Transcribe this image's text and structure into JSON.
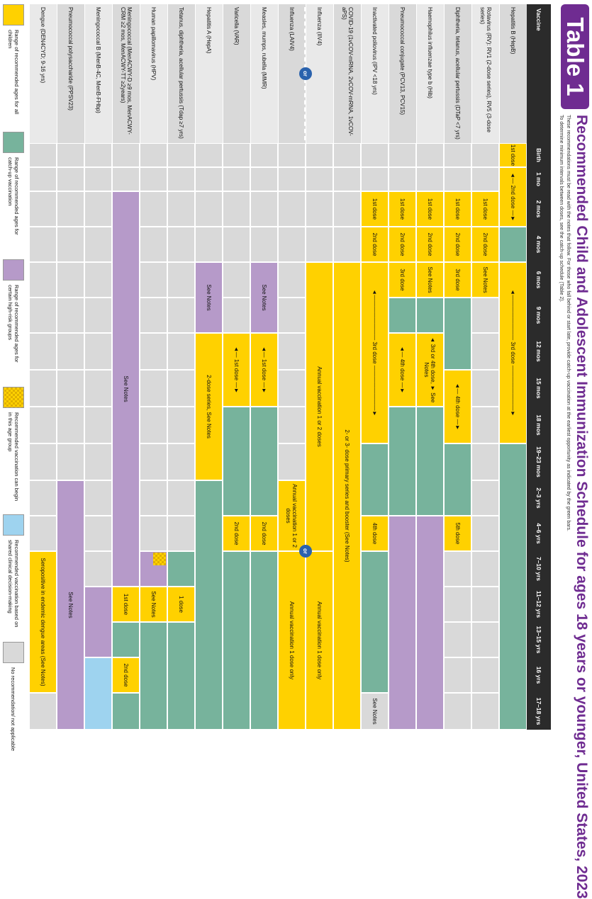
{
  "header": {
    "badge": "Table 1",
    "title": "Recommended Child and Adolescent Immunization Schedule for ages 18 years or younger, United States, 2023",
    "subtitle1": "These recommendations must be read with the notes that follow. For those who fall behind or start late, provide catch-up vaccination at the earliest opportunity as indicated by the green bars.",
    "subtitle2": "To determine minimum intervals between doses, see the catch-up schedule (Table 2)."
  },
  "table": {
    "vaccine_header": "Vaccine",
    "ages": [
      "Birth",
      "1 mo",
      "2 mos",
      "4 mos",
      "6 mos",
      "9 mos",
      "12 mos",
      "15 mos",
      "18 mos",
      "19–23 mos",
      "2–3 yrs",
      "4–6 yrs",
      "7–10 yrs",
      "11–12 yrs",
      "13–15 yrs",
      "16 yrs",
      "17–18 yrs"
    ],
    "vaccines": [
      "Hepatitis B (HepB)",
      "Rotavirus (RV): RV1 (2-dose series), RV5 (3-dose series)",
      "Diphtheria, tetanus, acellular pertussis (DTaP <7 yrs)",
      "Haemophilus influenzae type b (Hib)",
      "Pneumococcal conjugate (PCV13, PCV15)",
      "Inactivated poliovirus (IPV <18 yrs)",
      "COVID-19 (1vCOV-mRNA, 2vCOV-mRNA, 1vCOV-aPS)",
      "Influenza (IIV4)",
      "Influenza (LAIV4)",
      "Measles, mumps, rubella (MMR)",
      "Varicella (VAR)",
      "Hepatitis A (HepA)",
      "Tetanus, diphtheria, acellular pertussis (Tdap ≥7 yrs)",
      "Human papillomavirus (HPV)",
      "Meningococcal (MenACWY-D ≥9 mos, MenACWY-CRM ≥2 mos, MenACWY-TT ≥2years)",
      "Meningococcal B (MenB-4C, MenB-FHbp)",
      "Pneumococcal polysaccharide (PPSV23)",
      "Dengue (DEN4CYD; 9-16 yrs)"
    ],
    "or_label": "or",
    "segments": [
      {
        "row": 0,
        "start": 0,
        "end": 1,
        "color": "yellow",
        "text": "1st dose"
      },
      {
        "row": 0,
        "start": 1,
        "end": 3,
        "color": "yellow",
        "text": "◄— 2nd dose —►"
      },
      {
        "row": 0,
        "start": 3,
        "end": 4,
        "color": "green",
        "text": ""
      },
      {
        "row": 0,
        "start": 4,
        "end": 9,
        "color": "yellow",
        "text": "◄———————— 3rd dose ————————►"
      },
      {
        "row": 0,
        "start": 9,
        "end": 17,
        "color": "green",
        "text": ""
      },
      {
        "row": 1,
        "start": 2,
        "end": 3,
        "color": "yellow",
        "text": "1st dose"
      },
      {
        "row": 1,
        "start": 3,
        "end": 4,
        "color": "yellow",
        "text": "2nd dose"
      },
      {
        "row": 1,
        "start": 4,
        "end": 5,
        "color": "yellow",
        "text": "See Notes"
      },
      {
        "row": 2,
        "start": 2,
        "end": 3,
        "color": "yellow",
        "text": "1st dose"
      },
      {
        "row": 2,
        "start": 3,
        "end": 4,
        "color": "yellow",
        "text": "2nd dose"
      },
      {
        "row": 2,
        "start": 4,
        "end": 5,
        "color": "yellow",
        "text": "3rd dose"
      },
      {
        "row": 2,
        "start": 5,
        "end": 7,
        "color": "green",
        "text": ""
      },
      {
        "row": 2,
        "start": 7,
        "end": 9,
        "color": "yellow",
        "text": "◄— 4th dose —►"
      },
      {
        "row": 2,
        "start": 9,
        "end": 11,
        "color": "green",
        "text": ""
      },
      {
        "row": 2,
        "start": 11,
        "end": 12,
        "color": "yellow",
        "text": "5th dose"
      },
      {
        "row": 3,
        "start": 2,
        "end": 3,
        "color": "yellow",
        "text": "1st dose"
      },
      {
        "row": 3,
        "start": 3,
        "end": 4,
        "color": "yellow",
        "text": "2nd dose"
      },
      {
        "row": 3,
        "start": 4,
        "end": 5,
        "color": "yellow",
        "text": "See Notes"
      },
      {
        "row": 3,
        "start": 5,
        "end": 6,
        "color": "green",
        "text": ""
      },
      {
        "row": 3,
        "start": 6,
        "end": 8,
        "color": "yellow",
        "text": "◄ 3rd or 4th dose, ► See Notes"
      },
      {
        "row": 3,
        "start": 8,
        "end": 11,
        "color": "green",
        "text": ""
      },
      {
        "row": 3,
        "start": 11,
        "end": 17,
        "color": "purple",
        "text": ""
      },
      {
        "row": 4,
        "start": 2,
        "end": 3,
        "color": "yellow",
        "text": "1st dose"
      },
      {
        "row": 4,
        "start": 3,
        "end": 4,
        "color": "yellow",
        "text": "2nd dose"
      },
      {
        "row": 4,
        "start": 4,
        "end": 5,
        "color": "yellow",
        "text": "3rd dose"
      },
      {
        "row": 4,
        "start": 5,
        "end": 6,
        "color": "green",
        "text": ""
      },
      {
        "row": 4,
        "start": 6,
        "end": 8,
        "color": "yellow",
        "text": "◄— 4th dose —►"
      },
      {
        "row": 4,
        "start": 8,
        "end": 11,
        "color": "green",
        "text": ""
      },
      {
        "row": 4,
        "start": 11,
        "end": 17,
        "color": "purple",
        "text": ""
      },
      {
        "row": 5,
        "start": 2,
        "end": 3,
        "color": "yellow",
        "text": "1st dose"
      },
      {
        "row": 5,
        "start": 3,
        "end": 4,
        "color": "yellow",
        "text": "2nd dose"
      },
      {
        "row": 5,
        "start": 4,
        "end": 9,
        "color": "yellow",
        "text": "◄———————— 3rd dose ————————►"
      },
      {
        "row": 5,
        "start": 9,
        "end": 11,
        "color": "green",
        "text": ""
      },
      {
        "row": 5,
        "start": 11,
        "end": 12,
        "color": "yellow",
        "text": "4th dose"
      },
      {
        "row": 5,
        "start": 12,
        "end": 16,
        "color": "green",
        "text": ""
      },
      {
        "row": 5,
        "start": 16,
        "end": 17,
        "color": "lightgrey",
        "text": "See Notes"
      },
      {
        "row": 6,
        "start": 4,
        "end": 17,
        "color": "yellow",
        "text": "2- or 3- dose primary series and booster (See Notes)"
      },
      {
        "row": 7,
        "start": 4,
        "end": 12,
        "color": "yellow",
        "text": "Annual vaccination 1 or 2 doses"
      },
      {
        "row": 7,
        "start": 12,
        "end": 17,
        "color": "yellow",
        "text": "Annual vaccination 1 dose only"
      },
      {
        "row": 8,
        "start": 10,
        "end": 12,
        "color": "yellow",
        "text": "Annual vaccination 1 or 2 doses"
      },
      {
        "row": 8,
        "start": 12,
        "end": 17,
        "color": "yellow",
        "text": "Annual vaccination 1 dose only"
      },
      {
        "row": 9,
        "start": 4,
        "end": 6,
        "color": "purple",
        "text": "See Notes"
      },
      {
        "row": 9,
        "start": 6,
        "end": 8,
        "color": "yellow",
        "text": "◄— 1st dose —►"
      },
      {
        "row": 9,
        "start": 8,
        "end": 11,
        "color": "green",
        "text": ""
      },
      {
        "row": 9,
        "start": 11,
        "end": 12,
        "color": "yellow",
        "text": "2nd dose"
      },
      {
        "row": 9,
        "start": 12,
        "end": 17,
        "color": "green",
        "text": ""
      },
      {
        "row": 10,
        "start": 6,
        "end": 8,
        "color": "yellow",
        "text": "◄— 1st dose —►"
      },
      {
        "row": 10,
        "start": 8,
        "end": 11,
        "color": "green",
        "text": ""
      },
      {
        "row": 10,
        "start": 11,
        "end": 12,
        "color": "yellow",
        "text": "2nd dose"
      },
      {
        "row": 10,
        "start": 12,
        "end": 17,
        "color": "green",
        "text": ""
      },
      {
        "row": 11,
        "start": 4,
        "end": 6,
        "color": "purple",
        "text": "See Notes"
      },
      {
        "row": 11,
        "start": 6,
        "end": 10,
        "color": "yellow",
        "text": "2-dose series, See Notes"
      },
      {
        "row": 11,
        "start": 10,
        "end": 17,
        "color": "green",
        "text": ""
      },
      {
        "row": 12,
        "start": 12,
        "end": 13,
        "color": "green",
        "text": ""
      },
      {
        "row": 12,
        "start": 13,
        "end": 14,
        "color": "yellow",
        "text": "1 dose"
      },
      {
        "row": 12,
        "start": 14,
        "end": 17,
        "color": "green",
        "text": ""
      },
      {
        "row": 13,
        "start": 12,
        "end": 13,
        "color": "purple",
        "text": ""
      },
      {
        "row": 13,
        "start": 13,
        "end": 14,
        "color": "yellow",
        "text": "See Notes"
      },
      {
        "row": 13,
        "start": 14,
        "end": 17,
        "color": "green",
        "text": ""
      },
      {
        "row": 14,
        "start": 2,
        "end": 13,
        "color": "purple",
        "text": "See Notes"
      },
      {
        "row": 14,
        "start": 13,
        "end": 14,
        "color": "yellow",
        "text": "1st dose"
      },
      {
        "row": 14,
        "start": 14,
        "end": 15,
        "color": "green",
        "text": ""
      },
      {
        "row": 14,
        "start": 15,
        "end": 16,
        "color": "yellow",
        "text": "2nd dose"
      },
      {
        "row": 14,
        "start": 16,
        "end": 17,
        "color": "green",
        "text": ""
      },
      {
        "row": 15,
        "start": 13,
        "end": 15,
        "color": "purple",
        "text": ""
      },
      {
        "row": 15,
        "start": 15,
        "end": 17,
        "color": "blue",
        "text": ""
      },
      {
        "row": 16,
        "start": 10,
        "end": 17,
        "color": "purple",
        "text": "See Notes"
      },
      {
        "row": 17,
        "start": 12,
        "end": 16,
        "color": "yellow",
        "text": "Seropositive in endemic dengue areas (See Notes)"
      }
    ]
  },
  "legend": [
    {
      "color": "#ffd100",
      "text": "Range of recommended ages for all children"
    },
    {
      "color": "#77b39c",
      "text": "Range of recommended ages for catch-up vaccination"
    },
    {
      "color": "#b69ac9",
      "text": "Range of recommended ages for certain high-risk groups"
    },
    {
      "color": "checker",
      "text": "Recommended vaccination can begin in this age group"
    },
    {
      "color": "#9ed3ef",
      "text": "Recommended vaccination based on shared clinical decision-making"
    },
    {
      "color": "#d9d9d9",
      "text": "No recommendation/ not applicable"
    }
  ]
}
